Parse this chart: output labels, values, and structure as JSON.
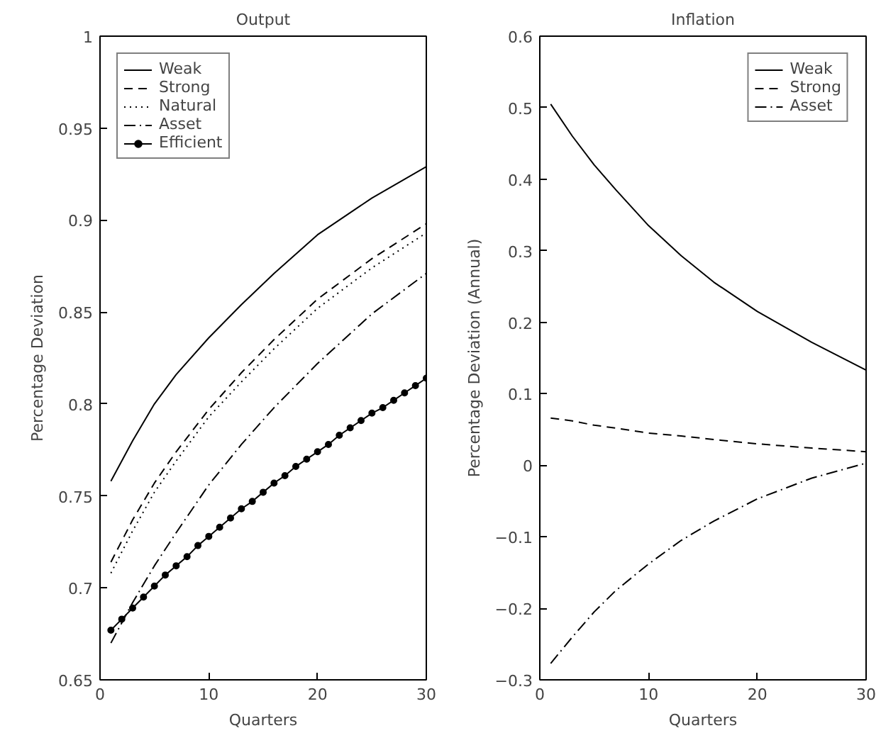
{
  "chart_data": [
    {
      "type": "line",
      "title": "Output",
      "xlabel": "Quarters",
      "ylabel": "Percentage Deviation",
      "xlim": [
        0,
        30
      ],
      "xticks": [
        0,
        10,
        20,
        30
      ],
      "ylim": [
        0.65,
        1
      ],
      "yticks": [
        0.65,
        0.7,
        0.75,
        0.8,
        0.85,
        0.9,
        0.95,
        1
      ],
      "grid": false,
      "legend": "top left",
      "x": [
        1,
        3,
        5,
        7,
        10,
        13,
        16,
        20,
        25,
        30
      ],
      "series": [
        {
          "name": "Weak",
          "color": "#000000",
          "line_style": "solid",
          "values": [
            0.758,
            0.78,
            0.8,
            0.816,
            0.836,
            0.854,
            0.871,
            0.892,
            0.912,
            0.929
          ]
        },
        {
          "name": "Strong",
          "color": "#000000",
          "line_style": "dashed",
          "values": [
            0.714,
            0.737,
            0.757,
            0.774,
            0.797,
            0.817,
            0.835,
            0.857,
            0.879,
            0.898
          ]
        },
        {
          "name": "Natural",
          "color": "#000000",
          "line_style": "dotted",
          "values": [
            0.708,
            0.731,
            0.752,
            0.769,
            0.793,
            0.812,
            0.83,
            0.852,
            0.874,
            0.893
          ]
        },
        {
          "name": "Asset",
          "color": "#000000",
          "line_style": "dashdot",
          "values": [
            0.67,
            0.692,
            0.712,
            0.73,
            0.756,
            0.778,
            0.798,
            0.822,
            0.849,
            0.871
          ]
        },
        {
          "name": "Efficient",
          "color": "#000000",
          "line_style": "solid",
          "marker": "circle",
          "x": [
            1,
            2,
            3,
            4,
            5,
            6,
            7,
            8,
            9,
            10,
            11,
            12,
            13,
            14,
            15,
            16,
            17,
            18,
            19,
            20,
            21,
            22,
            23,
            24,
            25,
            26,
            27,
            28,
            29,
            30
          ],
          "values": [
            0.677,
            0.683,
            0.689,
            0.695,
            0.701,
            0.707,
            0.712,
            0.717,
            0.723,
            0.728,
            0.733,
            0.738,
            0.743,
            0.747,
            0.752,
            0.757,
            0.761,
            0.766,
            0.77,
            0.774,
            0.778,
            0.783,
            0.787,
            0.791,
            0.795,
            0.798,
            0.802,
            0.806,
            0.81,
            0.814
          ]
        }
      ]
    },
    {
      "type": "line",
      "title": "Inflation",
      "xlabel": "Quarters",
      "ylabel": "Percentage Deviation (Annual)",
      "xlim": [
        0,
        30
      ],
      "xticks": [
        0,
        10,
        20,
        30
      ],
      "ylim": [
        -0.3,
        0.6
      ],
      "yticks": [
        {
          "value": -0.3,
          "label": "−0.3"
        },
        {
          "value": -0.2,
          "label": "−0.2"
        },
        {
          "value": -0.1,
          "label": "−0.1"
        },
        0,
        0.1,
        0.2,
        0.3,
        0.4,
        0.5,
        0.6
      ],
      "grid": false,
      "legend": "top right",
      "x": [
        1,
        3,
        5,
        7,
        10,
        13,
        16,
        20,
        25,
        30
      ],
      "series": [
        {
          "name": "Weak",
          "color": "#000000",
          "line_style": "solid",
          "values": [
            0.505,
            0.46,
            0.42,
            0.385,
            0.335,
            0.293,
            0.256,
            0.215,
            0.172,
            0.133
          ]
        },
        {
          "name": "Strong",
          "color": "#000000",
          "line_style": "dashed",
          "values": [
            0.066,
            0.062,
            0.056,
            0.052,
            0.045,
            0.041,
            0.036,
            0.03,
            0.024,
            0.019
          ]
        },
        {
          "name": "Asset",
          "color": "#000000",
          "line_style": "dashdot",
          "values": [
            -0.277,
            -0.24,
            -0.205,
            -0.175,
            -0.138,
            -0.105,
            -0.078,
            -0.047,
            -0.018,
            0.003
          ]
        }
      ]
    }
  ]
}
